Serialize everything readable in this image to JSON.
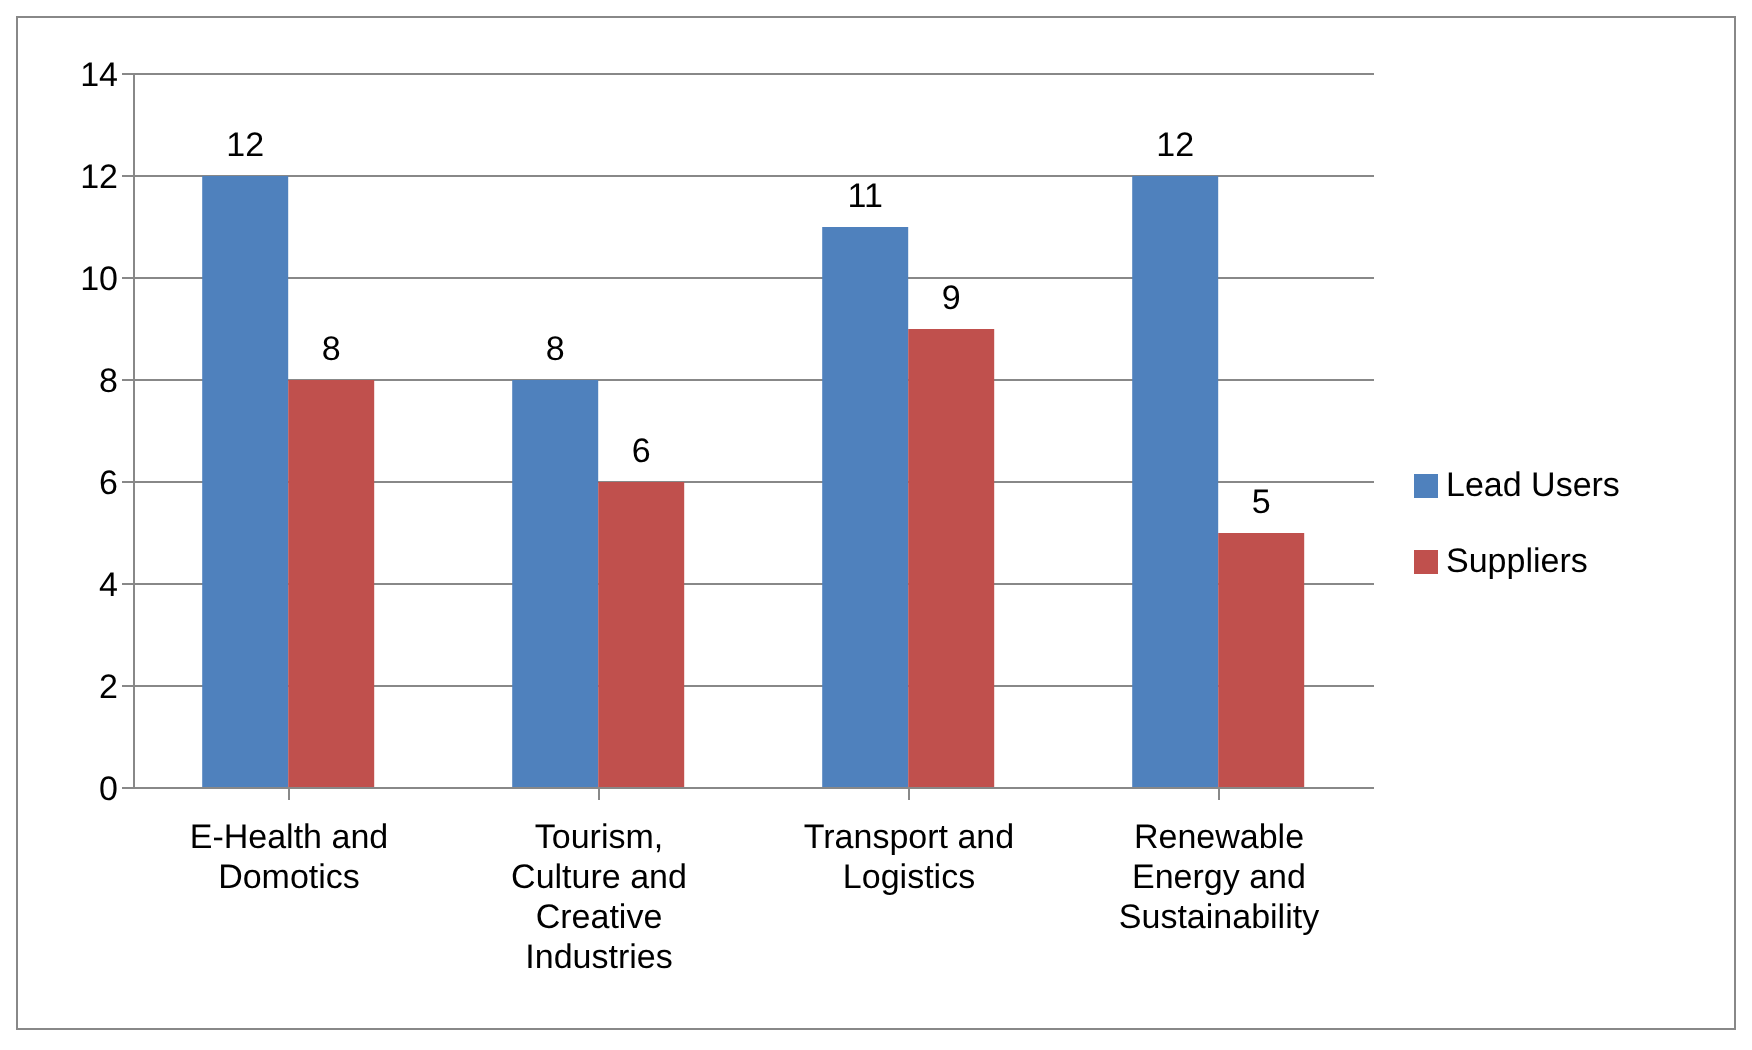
{
  "chart_data": {
    "type": "bar",
    "categories": [
      "E-Health and Domotics",
      "Tourism, Culture and Creative Industries",
      "Transport and Logistics",
      "Renewable Energy and Sustainability"
    ],
    "series": [
      {
        "name": "Lead Users",
        "color": "#4f81bd",
        "values": [
          12,
          8,
          11,
          12
        ]
      },
      {
        "name": "Suppliers",
        "color": "#c0504d",
        "values": [
          8,
          6,
          9,
          5
        ]
      }
    ],
    "ylim": [
      0,
      14
    ],
    "yticks": [
      0,
      2,
      4,
      6,
      8,
      10,
      12,
      14
    ],
    "grid": "y",
    "legend": "right",
    "data_labels": true
  }
}
